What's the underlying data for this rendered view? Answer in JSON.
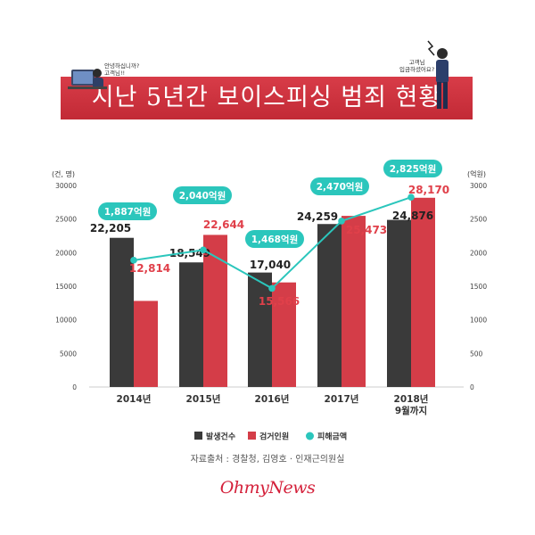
{
  "header": {
    "title": "지난 5년간 보이스피싱 범죄 현황",
    "bubble_left": [
      "안녕하십니까?",
      "고객님!!"
    ],
    "bubble_right": [
      "고객님",
      "입금하셨어요?"
    ]
  },
  "chart_data": {
    "type": "bar",
    "categories": [
      "2014년",
      "2015년",
      "2016년",
      "2017년",
      "2018년 9월까지"
    ],
    "category_lines": [
      [
        "2014년"
      ],
      [
        "2015년"
      ],
      [
        "2016년"
      ],
      [
        "2017년"
      ],
      [
        "2018년",
        "9월까지"
      ]
    ],
    "y_left": {
      "unit": "(건, 명)",
      "min": 0,
      "max": 30000,
      "ticks": [
        "0",
        "5000",
        "10000",
        "15000",
        "20000",
        "25000",
        "30000"
      ]
    },
    "y_right": {
      "unit": "(억원)",
      "min": 0,
      "max": 3000,
      "ticks": [
        "0",
        "500",
        "1000",
        "1500",
        "2000",
        "2500",
        "3000"
      ]
    },
    "series": [
      {
        "name": "발생건수",
        "type": "bar",
        "axis": "left",
        "color": "#3a3a3a",
        "values": [
          22205,
          18549,
          17040,
          24259,
          24876
        ],
        "labels": [
          "22,205",
          "18,549",
          "17,040",
          "24,259",
          "24,876"
        ],
        "label_color": "#222222"
      },
      {
        "name": "검거인원",
        "type": "bar",
        "axis": "left",
        "color": "#d43d48",
        "values": [
          12814,
          22644,
          15566,
          25473,
          28170
        ],
        "labels": [
          "12,814",
          "22,644",
          "15,566",
          "25,473",
          "28,170"
        ],
        "label_color": "#e0404a"
      },
      {
        "name": "피해금액",
        "type": "line",
        "axis": "right",
        "color": "#2bc6bc",
        "values": [
          1887,
          2040,
          1468,
          2470,
          2825
        ],
        "labels": [
          "1,887억원",
          "2,040억원",
          "1,468억원",
          "2,470억원",
          "2,825억원"
        ]
      }
    ],
    "grid": false,
    "legend_position": "bottom"
  },
  "footer": {
    "source": "자료출처 : 경찰청, 김영호 · 인재근의원실",
    "logo": "OhmyNews"
  }
}
